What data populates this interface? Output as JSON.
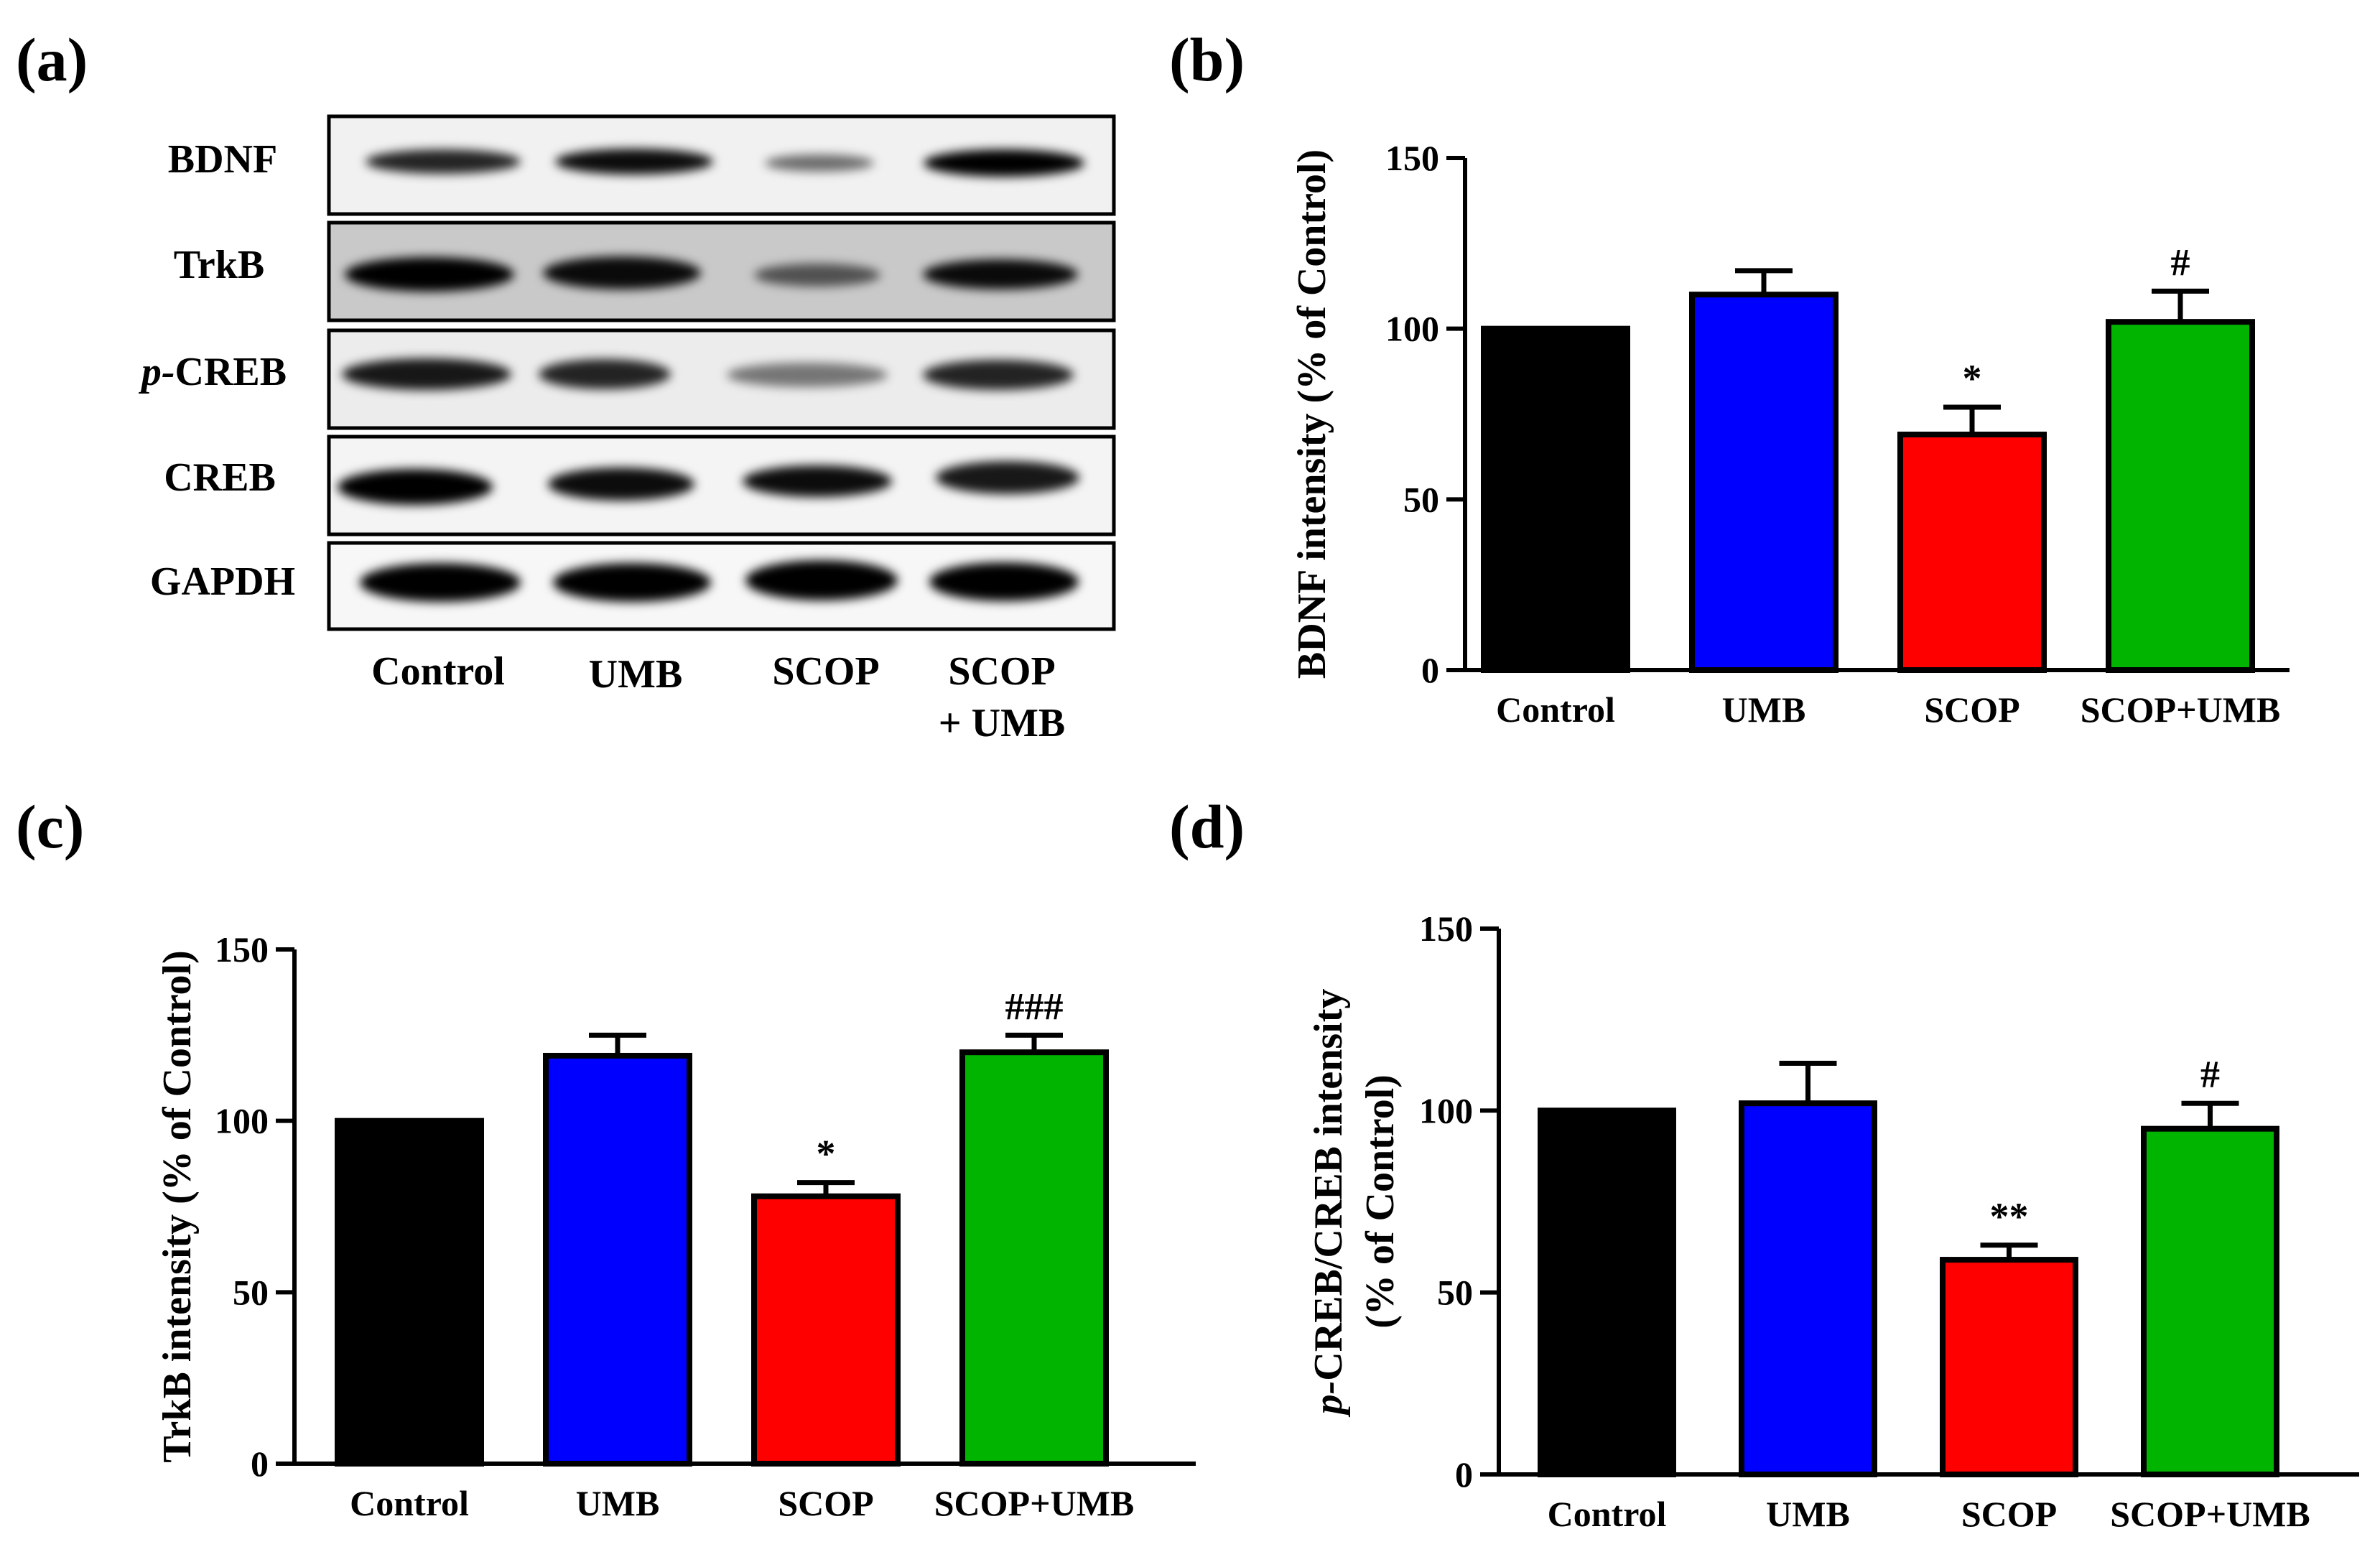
{
  "panel_labels": [
    "(a)",
    "(b)",
    "(c)",
    "(d)"
  ],
  "blot": {
    "rows": [
      "BDNF",
      "TrkB",
      "CREB",
      "CREB",
      "GAPDH"
    ],
    "row_prefixes": [
      "",
      "",
      "p-",
      "",
      ""
    ],
    "lanes": [
      "Control",
      "UMB",
      "SCOP",
      "SCOP"
    ],
    "lane_second_lines": [
      "",
      "",
      "",
      "+ UMB"
    ],
    "band_intensity": [
      [
        0.85,
        0.95,
        0.55,
        1.0
      ],
      [
        1.0,
        0.95,
        0.6,
        0.95
      ],
      [
        0.9,
        0.85,
        0.5,
        0.85
      ],
      [
        1.0,
        0.95,
        0.95,
        0.9
      ],
      [
        1.0,
        1.0,
        1.0,
        1.0
      ]
    ]
  },
  "chart_data": [
    {
      "type": "bar",
      "panel": "(b)",
      "categories": [
        "Control",
        "UMB",
        "SCOP",
        "SCOP+UMB"
      ],
      "values": [
        100,
        110,
        69,
        102
      ],
      "errors": [
        0,
        7,
        8,
        9
      ],
      "significance": [
        "",
        "",
        "*",
        "#"
      ],
      "colors": [
        "#000000",
        "#0000ff",
        "#ff0000",
        "#00b400"
      ],
      "ylabel": "BDNF intensity (% of Control)",
      "ylabel_prefix": "",
      "ylabel_lines": [],
      "ylim": [
        0,
        150
      ],
      "yticks": [
        "0",
        "50",
        "100",
        "150"
      ]
    },
    {
      "type": "bar",
      "panel": "(c)",
      "categories": [
        "Control",
        "UMB",
        "SCOP",
        "SCOP+UMB"
      ],
      "values": [
        100,
        119,
        78,
        120
      ],
      "errors": [
        0,
        6,
        4,
        5
      ],
      "significance": [
        "",
        "",
        "*",
        "###"
      ],
      "colors": [
        "#000000",
        "#0000ff",
        "#ff0000",
        "#00b400"
      ],
      "ylabel": "TrkB intensity (% of Control)",
      "ylabel_prefix": "",
      "ylabel_lines": [],
      "ylim": [
        0,
        150
      ],
      "yticks": [
        "0",
        "50",
        "100",
        "150"
      ]
    },
    {
      "type": "bar",
      "panel": "(d)",
      "categories": [
        "Control",
        "UMB",
        "SCOP",
        "SCOP+UMB"
      ],
      "values": [
        100,
        102,
        59,
        95
      ],
      "errors": [
        0,
        11,
        4,
        7
      ],
      "significance": [
        "",
        "",
        "**",
        "#"
      ],
      "colors": [
        "#000000",
        "#0000ff",
        "#ff0000",
        "#00b400"
      ],
      "ylabel": "",
      "ylabel_prefix": "p-",
      "ylabel_lines": [
        "CREB/CREB intensity",
        "(% of Control)"
      ],
      "ylim": [
        0,
        150
      ],
      "yticks": [
        "0",
        "50",
        "100",
        "150"
      ]
    }
  ]
}
